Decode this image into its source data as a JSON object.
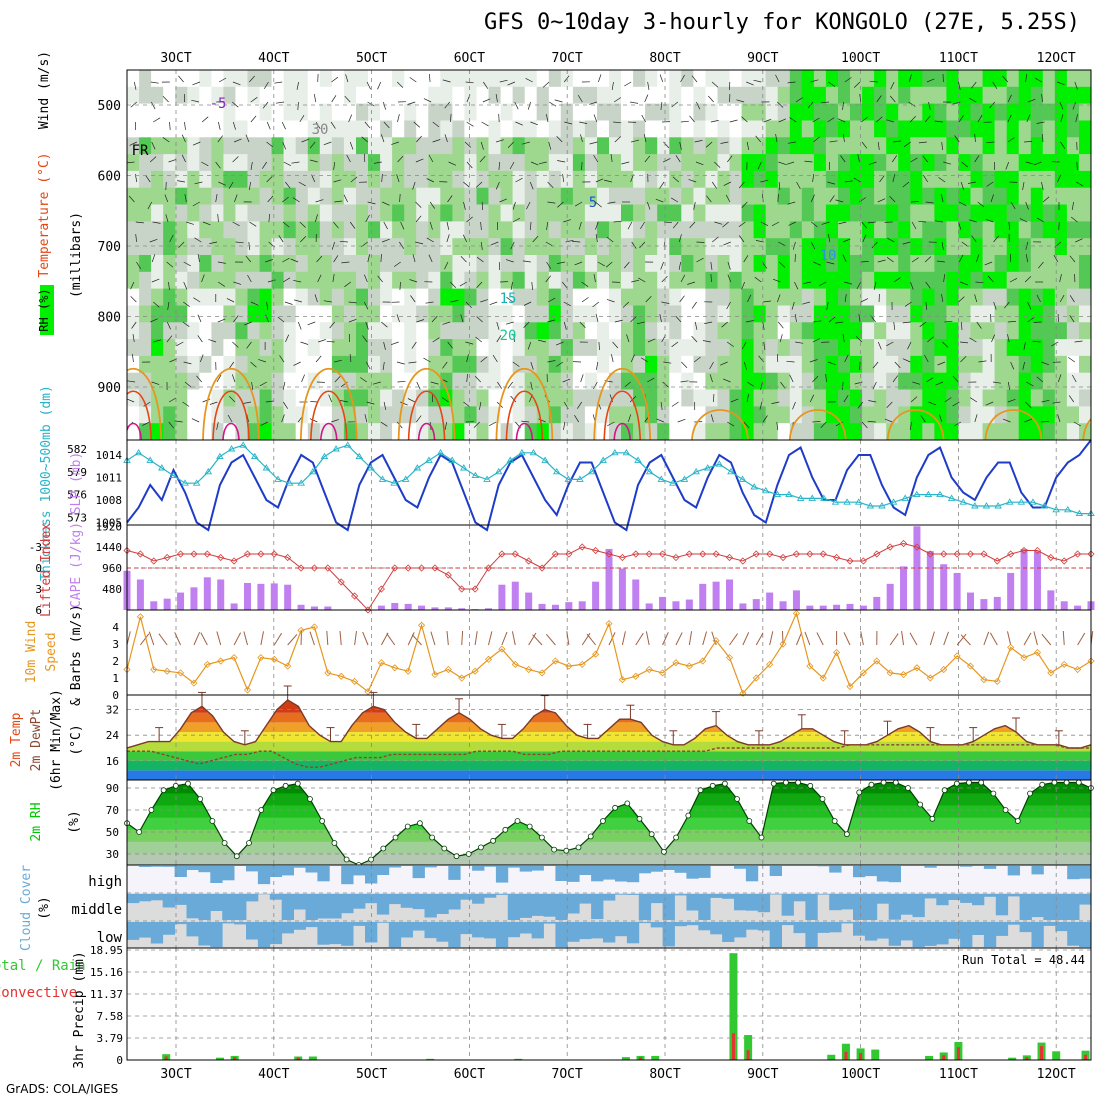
{
  "title": "GFS 0~10day 3-hourly for KONGOLO (27E, 5.25S)",
  "footer": "GrADS: COLA/IGES",
  "colors": {
    "rh_light": "#c8d4c8",
    "rh_mid": "#9ed88e",
    "rh_green": "#54c854",
    "rh_bright": "#00f000",
    "temp_purple": "#8a1ec8",
    "temp_blue": "#1e50d2",
    "temp_lightblue": "#2896dc",
    "temp_teal": "#14b4b4",
    "temp_seagreen": "#14c896",
    "temp_orange": "#e6961e",
    "temp_red": "#e64614",
    "temp_magenta": "#d2148c",
    "slp": "#1e3cc8",
    "thickness": "#28b4c8",
    "lifted": "#d23c3c",
    "cape": "#c080f0",
    "wind10": "#e6961e",
    "barb": "#a06040",
    "dewpt": "#8c4632",
    "rh2m": "#00c800",
    "cloud": "#6aaad8",
    "cloud_bg_high": "#f4f4fa",
    "cloud_bg": "#dcdcdc",
    "precip_total": "#32c832",
    "precip_conv": "#e63232"
  },
  "chart_data": [
    {
      "panel": "upper_air",
      "type": "heatmap",
      "legend": {
        "rh": "RH (%)",
        "temperature": "Temperature (°C)",
        "wind": "Wind (m/s)"
      },
      "ylabel": "(millibars)",
      "yticks": [
        "500",
        "600",
        "700",
        "800",
        "900"
      ],
      "x_top_ticks": [
        "3OCT",
        "4OCT",
        "5OCT",
        "6OCT",
        "7OCT",
        "8OCT",
        "9OCT",
        "10OCT",
        "11OCT",
        "12OCT"
      ],
      "isotherm_labels": [
        "-5",
        "FR",
        "5",
        "10",
        "15",
        "20",
        "30"
      ],
      "isotherms_mb": [
        {
          "temp": "-5",
          "level": 490
        },
        {
          "temp": "FR",
          "level": 570
        },
        {
          "temp": "5",
          "level": 640
        },
        {
          "temp": "10",
          "level": 700
        },
        {
          "temp": "15",
          "level": 770
        },
        {
          "temp": "20",
          "level": 830
        }
      ]
    },
    {
      "panel": "thickness_slp",
      "type": "line",
      "ylabel_left": "Thickness 1000~500mb (dm)",
      "ylabel_right": "SLP (mb)",
      "left_ticks": [
        "582",
        "579",
        "576",
        "573"
      ],
      "right_ticks": [
        "1014",
        "1011",
        "1008",
        "1005"
      ],
      "series": [
        {
          "name": "SLP (mb)",
          "values": [
            1005,
            1007,
            1010,
            1008,
            1012,
            1009,
            1005,
            1004,
            1010,
            1013,
            1014,
            1011,
            1008,
            1007,
            1011,
            1014,
            1013,
            1009,
            1005,
            1004,
            1010,
            1013,
            1014,
            1011,
            1008,
            1007,
            1011,
            1014,
            1013,
            1009,
            1005,
            1004,
            1010,
            1013,
            1014,
            1011,
            1008,
            1006,
            1010,
            1013,
            1013,
            1009,
            1005,
            1004,
            1010,
            1013,
            1014,
            1011,
            1008,
            1007,
            1011,
            1014,
            1013,
            1009,
            1006,
            1005,
            1010,
            1014,
            1015,
            1011,
            1008,
            1008,
            1012,
            1014,
            1014,
            1010,
            1007,
            1006,
            1011,
            1014,
            1015,
            1011,
            1009,
            1008,
            1011,
            1013,
            1013,
            1009,
            1007,
            1007,
            1011,
            1013,
            1014,
            1016
          ]
        },
        {
          "name": "Thickness (dm)",
          "values": [
            580.5,
            581.5,
            580.5,
            579.5,
            578.5,
            577.5,
            577.5,
            579,
            581,
            582,
            582.5,
            581,
            579.5,
            578,
            577.5,
            577.5,
            579,
            581,
            582,
            582.5,
            581,
            579.5,
            578,
            577.5,
            578,
            579.5,
            580.5,
            581.5,
            580.5,
            579.5,
            578.5,
            578,
            579,
            580.5,
            581.5,
            581.5,
            580.5,
            579,
            578,
            578,
            579,
            580.5,
            581.5,
            581.5,
            580.5,
            579,
            578,
            577.5,
            578,
            579,
            579.5,
            580,
            579,
            578,
            577,
            576.5,
            576,
            576,
            575.5,
            575.5,
            575.5,
            575,
            575,
            575,
            574.5,
            574.5,
            575,
            575.5,
            576,
            576,
            576,
            575.5,
            575,
            574.5,
            574.5,
            574.5,
            575,
            575,
            575,
            574.5,
            574,
            574,
            573.5,
            573.5
          ]
        }
      ]
    },
    {
      "panel": "lifted_cape",
      "type": "bar",
      "ylabel_left": "Lifted Index",
      "ylabel_right": "CAPE (J/kg)",
      "left_ticks": [
        "-3",
        "0",
        "3",
        "6"
      ],
      "right_ticks": [
        "1920",
        "1440",
        "960",
        "480"
      ],
      "series": [
        {
          "name": "CAPE (J/kg)",
          "values": [
            900,
            700,
            200,
            260,
            400,
            520,
            750,
            700,
            150,
            620,
            600,
            610,
            580,
            120,
            80,
            80,
            0,
            0,
            0,
            100,
            160,
            140,
            100,
            60,
            60,
            40,
            20,
            40,
            580,
            650,
            400,
            140,
            120,
            180,
            200,
            650,
            1400,
            950,
            700,
            150,
            300,
            200,
            240,
            600,
            650,
            700,
            150,
            250,
            400,
            200,
            450,
            100,
            100,
            120,
            140,
            100,
            300,
            600,
            1000,
            1920,
            1350,
            1050,
            850,
            400,
            250,
            300,
            850,
            1400,
            1350,
            450,
            200,
            100,
            200
          ]
        },
        {
          "name": "Lifted Index",
          "values": [
            -2.5,
            -2,
            -1,
            -1.5,
            -2,
            -2,
            -2,
            -1.5,
            -1,
            -2,
            -2,
            -2,
            -1.5,
            0,
            0,
            0,
            2,
            4,
            6,
            3,
            0,
            0,
            0,
            0,
            1,
            3,
            3,
            0,
            -2,
            -2,
            -1,
            0,
            -2,
            -2,
            -3,
            -2.5,
            -2,
            -1.5,
            -2,
            -2,
            -2,
            -1.5,
            -2,
            -2,
            -2,
            -1.5,
            -1,
            -2,
            -2,
            -1.5,
            -2,
            -2,
            -2,
            -1.5,
            -1,
            -1,
            -2,
            -3,
            -3.5,
            -3,
            -2,
            -2,
            -2,
            -2,
            -2,
            -1,
            -2,
            -2.5,
            -2.5,
            -1.5,
            -1,
            -2,
            -2
          ]
        }
      ]
    },
    {
      "panel": "wind10m",
      "type": "line",
      "ylabel": "10m Wind Speed & Barbs (m/s)",
      "yticks": [
        "4",
        "3",
        "2",
        "1",
        "0"
      ],
      "series": [
        {
          "name": "10m Wind Speed",
          "values": [
            1.5,
            4.6,
            1.5,
            1.4,
            1.3,
            0.7,
            1.8,
            2.0,
            2.2,
            0.3,
            2.2,
            2.1,
            1.7,
            3.8,
            4.0,
            1.3,
            1.1,
            0.8,
            0.2,
            1.9,
            1.6,
            1.4,
            4.1,
            1.2,
            1.5,
            1.0,
            1.4,
            2.1,
            2.7,
            1.8,
            1.5,
            1.3,
            2.0,
            1.7,
            1.8,
            2.4,
            4.2,
            0.9,
            1.1,
            1.5,
            1.3,
            1.9,
            1.7,
            2.0,
            3.2,
            2.2,
            0.1,
            1.0,
            1.8,
            3.0,
            4.8,
            1.7,
            1.0,
            2.5,
            0.5,
            1.3,
            2.0,
            1.3,
            1.2,
            1.6,
            1.0,
            1.5,
            2.3,
            1.7,
            0.9,
            0.8,
            2.8,
            2.2,
            2.5,
            1.3,
            1.8,
            1.5,
            2.0
          ]
        }
      ]
    },
    {
      "panel": "temp2m",
      "type": "area",
      "ylabel": "2m Temp 2m DewPt (6hr Min/Max) (°C)",
      "yticks": [
        "32",
        "24",
        "16"
      ],
      "series": [
        {
          "name": "2m Temp",
          "values": [
            20,
            21,
            22,
            22,
            22,
            26,
            31,
            33,
            30,
            25,
            22,
            21,
            22,
            27,
            32,
            35,
            33,
            27,
            24,
            22,
            22,
            27,
            31,
            33,
            32,
            28,
            25,
            23,
            23,
            26,
            29,
            31,
            29,
            26,
            24,
            23,
            23,
            26,
            30,
            32,
            31,
            27,
            24,
            23,
            23,
            26,
            29,
            29,
            28,
            24,
            22,
            21,
            21,
            23,
            26,
            27,
            24,
            22,
            21,
            21,
            21,
            22,
            24,
            26,
            26,
            24,
            22,
            21,
            21,
            21,
            22,
            24,
            26,
            27,
            25,
            22,
            21,
            21,
            21,
            22,
            24,
            26,
            27,
            25,
            22,
            21,
            21,
            21,
            20,
            20,
            21
          ]
        },
        {
          "name": "2m DewPt",
          "values": [
            19,
            19,
            19,
            18,
            17,
            16,
            15,
            16,
            17,
            18,
            18,
            19,
            19,
            17,
            15,
            14,
            14,
            15,
            16,
            17,
            17,
            17,
            18,
            18,
            18,
            18,
            18,
            18,
            18,
            19,
            19,
            19,
            19,
            18,
            18,
            18,
            19,
            19,
            19,
            19,
            19,
            19,
            19,
            19,
            19,
            19,
            19,
            19,
            19,
            20,
            20,
            20,
            20,
            20,
            20,
            20,
            20,
            20,
            20,
            20,
            21,
            21,
            21,
            21,
            21,
            21,
            21,
            21,
            21,
            21,
            21,
            21,
            21,
            21,
            21,
            21,
            21,
            21,
            20,
            20,
            20
          ]
        }
      ]
    },
    {
      "panel": "rh2m",
      "type": "area",
      "ylabel": "2m RH (%)",
      "yticks": [
        "90",
        "70",
        "50",
        "30"
      ],
      "series": [
        {
          "name": "2m RH",
          "values": [
            58,
            50,
            70,
            88,
            92,
            94,
            80,
            60,
            40,
            28,
            40,
            70,
            88,
            92,
            94,
            80,
            60,
            40,
            25,
            20,
            25,
            35,
            45,
            55,
            58,
            45,
            35,
            28,
            30,
            36,
            42,
            52,
            60,
            55,
            45,
            34,
            33,
            36,
            46,
            60,
            72,
            76,
            62,
            48,
            32,
            45,
            65,
            88,
            92,
            94,
            80,
            60,
            45,
            94,
            95,
            95,
            92,
            80,
            60,
            48,
            86,
            93,
            95,
            95,
            90,
            75,
            62,
            88,
            94,
            95,
            95,
            85,
            70,
            60,
            85,
            93,
            95,
            95,
            95,
            90
          ]
        }
      ]
    },
    {
      "panel": "cloud_cover",
      "type": "bar",
      "ylabel": "Cloud Cover (%)",
      "yticks": [
        "high",
        "middle",
        "low"
      ]
    },
    {
      "panel": "precip",
      "type": "bar",
      "ylabel": "3hr Precip (mm)",
      "legend": [
        "Total / Rain",
        "Convective"
      ],
      "annotation": "Run Total = 48.44",
      "yticks": [
        "18.95",
        "15.16",
        "11.37",
        "7.58",
        "3.79",
        "0"
      ],
      "x_bottom_ticks": [
        "3OCT",
        "4OCT",
        "5OCT",
        "6OCT",
        "7OCT",
        "8OCT",
        "9OCT",
        "10OCT",
        "11OCT",
        "12OCT"
      ],
      "series": [
        {
          "name": "Total / Rain",
          "values": [
            {
              "x": 2.9,
              "v": 1.0
            },
            {
              "x": 3.45,
              "v": 0.4
            },
            {
              "x": 3.6,
              "v": 0.7
            },
            {
              "x": 4.25,
              "v": 0.6
            },
            {
              "x": 4.4,
              "v": 0.6
            },
            {
              "x": 5.6,
              "v": 0.2
            },
            {
              "x": 6.5,
              "v": 0.2
            },
            {
              "x": 7.6,
              "v": 0.5
            },
            {
              "x": 7.75,
              "v": 0.7
            },
            {
              "x": 7.9,
              "v": 0.7
            },
            {
              "x": 8.7,
              "v": 18.4
            },
            {
              "x": 8.85,
              "v": 4.3
            },
            {
              "x": 9.7,
              "v": 0.9
            },
            {
              "x": 9.85,
              "v": 2.8
            },
            {
              "x": 10.0,
              "v": 2.0
            },
            {
              "x": 10.15,
              "v": 1.8
            },
            {
              "x": 10.7,
              "v": 0.7
            },
            {
              "x": 10.85,
              "v": 1.3
            },
            {
              "x": 11.0,
              "v": 3.1
            },
            {
              "x": 11.55,
              "v": 0.4
            },
            {
              "x": 11.7,
              "v": 0.8
            },
            {
              "x": 11.85,
              "v": 3.0
            },
            {
              "x": 12.0,
              "v": 1.5
            },
            {
              "x": 12.3,
              "v": 1.6
            },
            {
              "x": 12.5,
              "v": 0.6
            },
            {
              "x": 12.65,
              "v": 1.8
            },
            {
              "x": 12.78,
              "v": 3.1
            }
          ]
        },
        {
          "name": "Convective",
          "values": [
            {
              "x": 2.9,
              "v": 0.6
            },
            {
              "x": 3.6,
              "v": 0.5
            },
            {
              "x": 4.25,
              "v": 0.4
            },
            {
              "x": 7.75,
              "v": 0.5
            },
            {
              "x": 8.7,
              "v": 4.6
            },
            {
              "x": 8.85,
              "v": 1.7
            },
            {
              "x": 9.85,
              "v": 1.4
            },
            {
              "x": 10.0,
              "v": 1.2
            },
            {
              "x": 10.85,
              "v": 0.8
            },
            {
              "x": 11.0,
              "v": 2.2
            },
            {
              "x": 11.7,
              "v": 0.5
            },
            {
              "x": 11.85,
              "v": 2.4
            },
            {
              "x": 12.3,
              "v": 0.9
            },
            {
              "x": 12.65,
              "v": 0.9
            },
            {
              "x": 12.78,
              "v": 2.4
            }
          ]
        }
      ]
    }
  ]
}
